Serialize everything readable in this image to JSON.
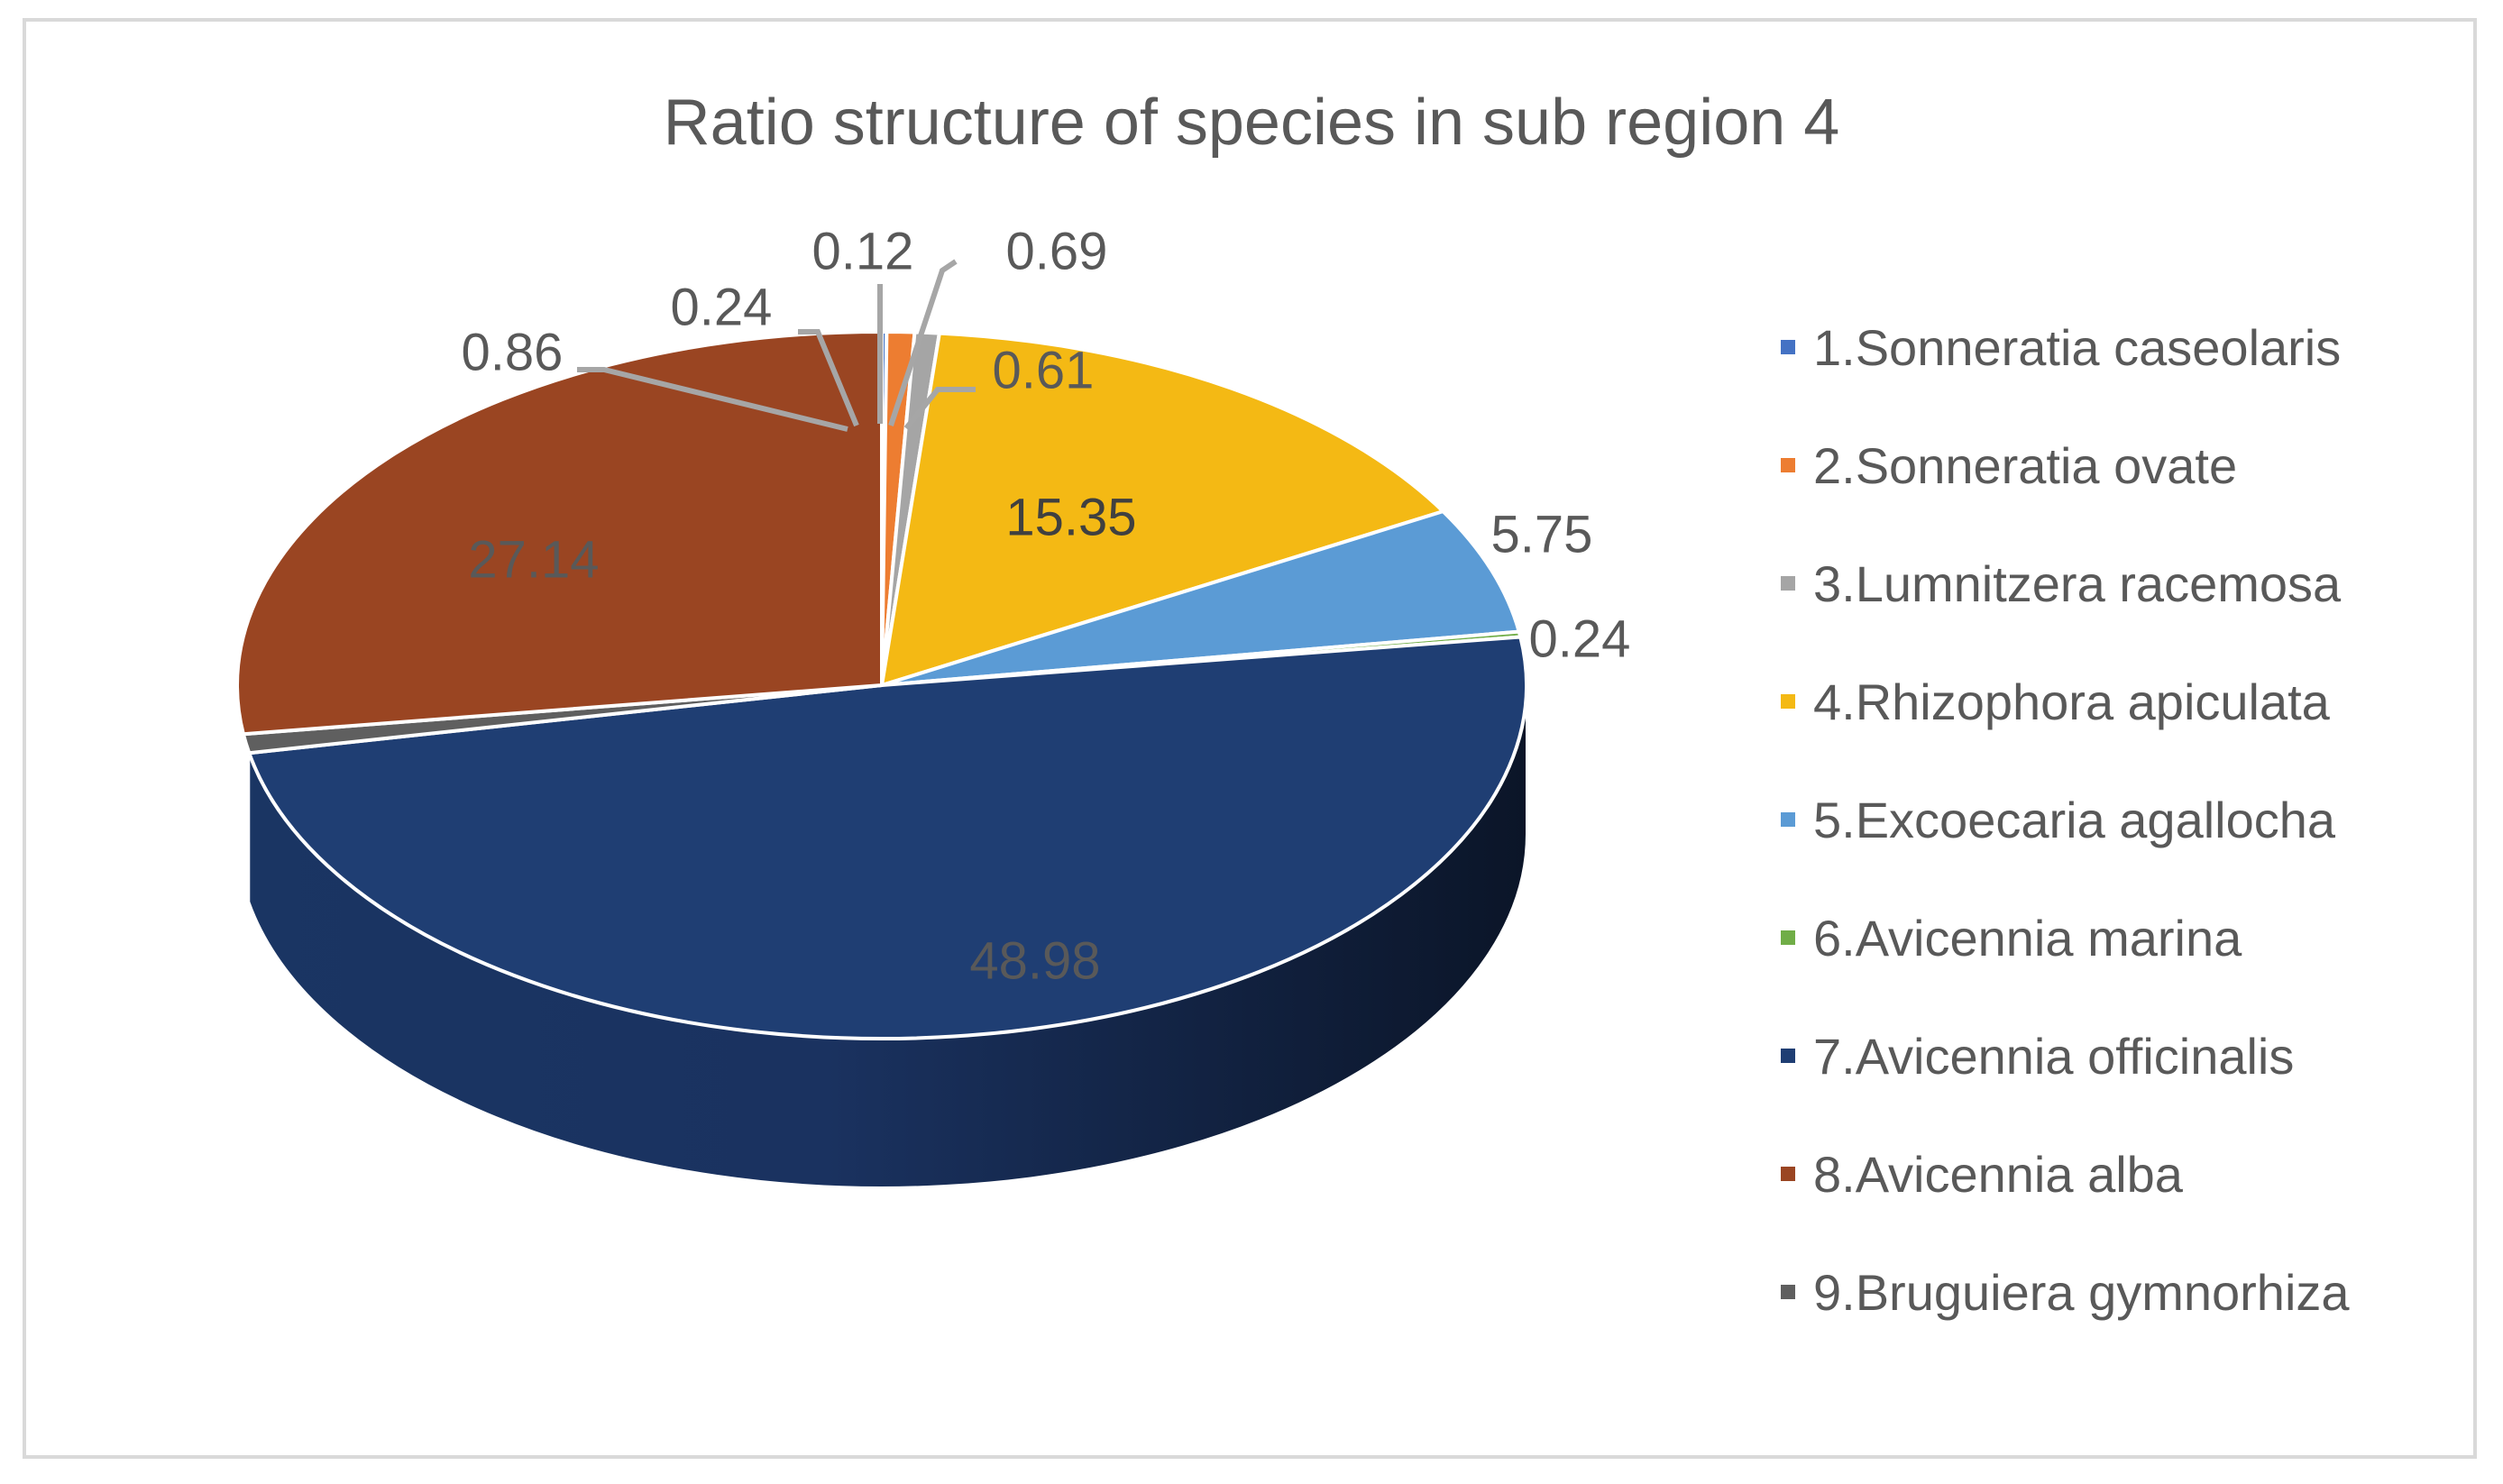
{
  "chart_data": {
    "type": "pie",
    "title": "Ratio structure of species in sub region 4",
    "categories": [
      "1.Sonneratia caseolaris",
      "2.Sonneratia ovate",
      "3.Lumnitzera racemosa",
      "4.Rhizophora apiculata",
      "5.Excoecaria agallocha",
      "6.Avicennia marina",
      "7.Avicennia officinalis",
      "8.Avicennia alba",
      "9.Bruguiera gymnorhiza"
    ],
    "values": [
      0.12,
      0.69,
      0.61,
      15.35,
      5.75,
      0.24,
      48.98,
      27.14,
      0.86
    ],
    "labels": [
      "0.12",
      "0.69",
      "0.61",
      "15.35",
      "5.75",
      "0.24",
      "48.98",
      "27.14",
      "0.86"
    ],
    "extra_label": "0.24",
    "colors": [
      "#4472c4",
      "#ed7d31",
      "#a5a5a5",
      "#f4b914",
      "#5b9bd5",
      "#70ad47",
      "#1f3e73",
      "#9a4522",
      "#5f5f5f"
    ],
    "legend_position": "right",
    "style": "3d"
  }
}
